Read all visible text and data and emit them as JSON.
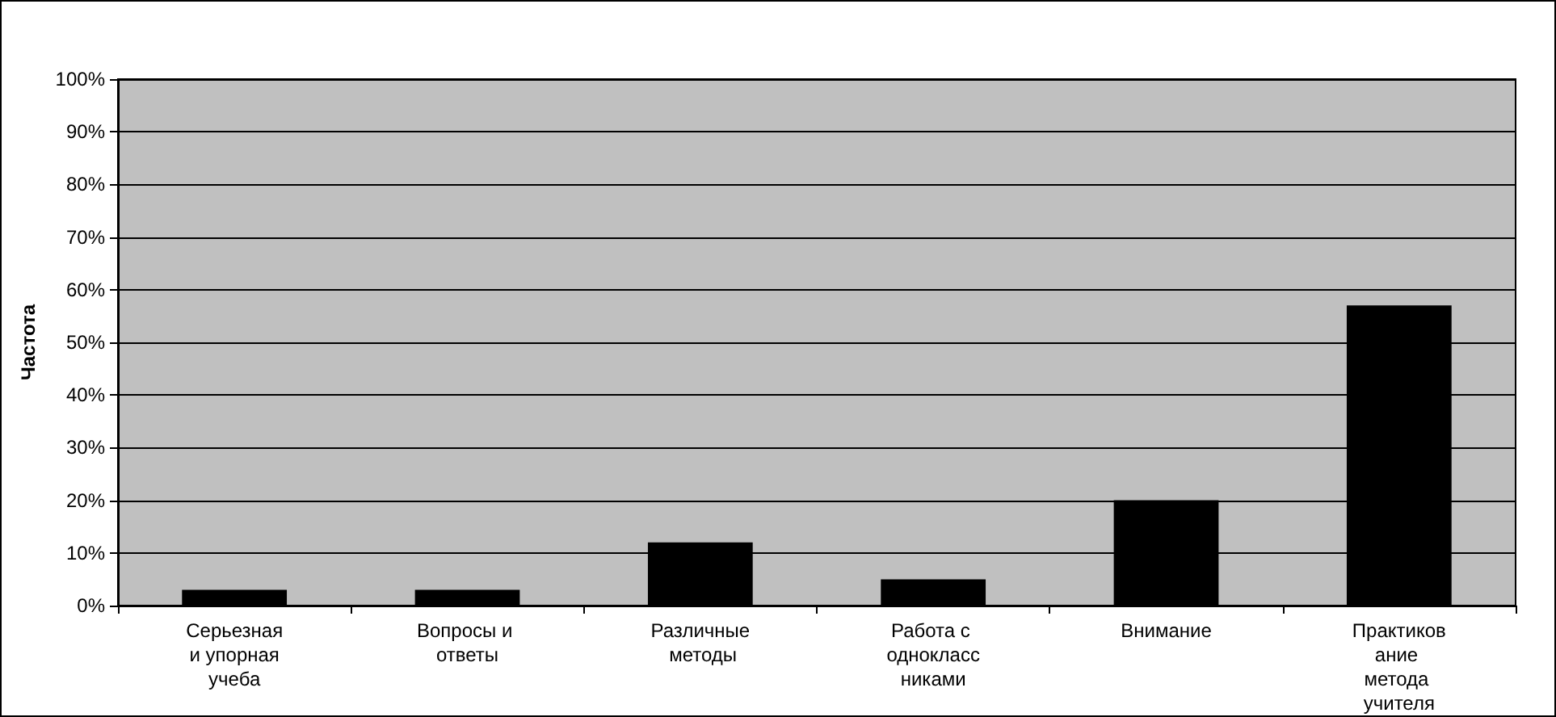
{
  "chart_data": {
    "type": "bar",
    "ylabel": "Частота",
    "categories": [
      "Серьезная и упорная учеба",
      "Вопросы и ответы",
      "Различные методы",
      "Работа с одноклассниками",
      "Внимание",
      "Практикование метода учителя"
    ],
    "values": [
      3,
      3,
      12,
      5,
      20,
      57
    ],
    "color": "#000000",
    "ylim": [
      0,
      100
    ],
    "yticks": [
      {
        "value": 0,
        "label": "0%"
      },
      {
        "value": 10,
        "label": "10%"
      },
      {
        "value": 20,
        "label": "20%"
      },
      {
        "value": 30,
        "label": "30%"
      },
      {
        "value": 40,
        "label": "40%"
      },
      {
        "value": 50,
        "label": "50%"
      },
      {
        "value": 60,
        "label": "60%"
      },
      {
        "value": 70,
        "label": "70%"
      },
      {
        "value": 80,
        "label": "80%"
      },
      {
        "value": 90,
        "label": "90%"
      },
      {
        "value": 100,
        "label": "100%"
      }
    ],
    "grid": "y"
  }
}
